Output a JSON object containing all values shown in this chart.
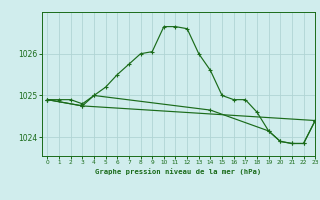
{
  "title": "Graphe pression niveau de la mer (hPa)",
  "background_color": "#d0eded",
  "grid_color": "#b0d4d4",
  "line_color": "#1a6b1a",
  "xlim": [
    -0.5,
    23
  ],
  "ylim": [
    1023.55,
    1027.0
  ],
  "yticks": [
    1024,
    1025,
    1026
  ],
  "xticks": [
    0,
    1,
    2,
    3,
    4,
    5,
    6,
    7,
    8,
    9,
    10,
    11,
    12,
    13,
    14,
    15,
    16,
    17,
    18,
    19,
    20,
    21,
    22,
    23
  ],
  "series": [
    {
      "x": [
        0,
        1,
        2,
        3,
        4,
        5,
        6,
        7,
        8,
        9,
        10,
        11,
        12,
        13,
        14,
        15,
        16,
        17,
        18,
        19,
        20,
        21,
        22,
        23
      ],
      "y": [
        1024.9,
        1024.9,
        1024.9,
        1024.8,
        1025.0,
        1025.2,
        1025.5,
        1025.75,
        1026.0,
        1026.05,
        1026.65,
        1026.65,
        1026.6,
        1026.0,
        1025.6,
        1025.0,
        1024.9,
        1024.9,
        1024.6,
        1024.15,
        1023.9,
        1023.85,
        1023.85,
        1024.4
      ]
    },
    {
      "x": [
        0,
        3,
        4,
        14,
        19,
        20,
        21,
        22,
        23
      ],
      "y": [
        1024.9,
        1024.75,
        1025.0,
        1024.65,
        1024.15,
        1023.9,
        1023.85,
        1023.85,
        1024.4
      ]
    },
    {
      "x": [
        0,
        3,
        23
      ],
      "y": [
        1024.9,
        1024.75,
        1024.4
      ]
    }
  ]
}
